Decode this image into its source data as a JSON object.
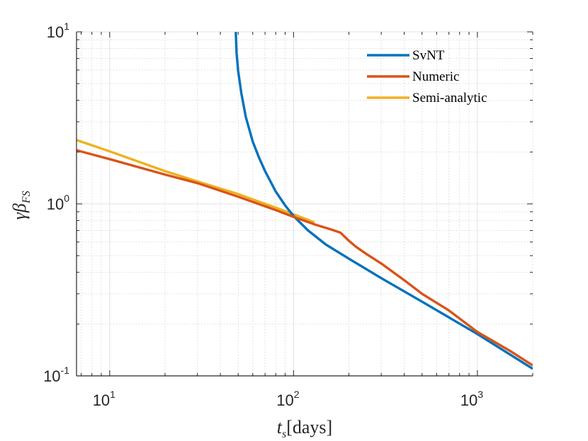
{
  "chart_data": {
    "type": "line",
    "xscale": "log",
    "yscale": "log",
    "xlim": [
      6.6,
      2000
    ],
    "ylim": [
      0.1,
      10
    ],
    "grid": true,
    "minor_grid": true,
    "legend_location": "top-right",
    "xlabel": {
      "main": "t",
      "sub": "s",
      "rest": "[days]"
    },
    "ylabel": {
      "main": "γβ",
      "sub": "FS"
    },
    "x_ticks": [
      {
        "value": 10,
        "base": "10",
        "exp": "1"
      },
      {
        "value": 100,
        "base": "10",
        "exp": "2"
      },
      {
        "value": 1000,
        "base": "10",
        "exp": "3"
      }
    ],
    "y_ticks": [
      {
        "value": 0.1,
        "base": "10",
        "exp": "-1"
      },
      {
        "value": 1,
        "base": "10",
        "exp": "0"
      },
      {
        "value": 10,
        "base": "10",
        "exp": "1"
      }
    ],
    "series": [
      {
        "name": "SvNT",
        "color": "#0072BD",
        "points": [
          [
            48.5,
            10
          ],
          [
            49,
            7.5
          ],
          [
            50,
            5.9
          ],
          [
            52,
            4.4
          ],
          [
            55,
            3.2
          ],
          [
            60,
            2.3
          ],
          [
            65,
            1.85
          ],
          [
            70,
            1.55
          ],
          [
            80,
            1.18
          ],
          [
            90,
            0.98
          ],
          [
            100,
            0.85
          ],
          [
            120,
            0.7
          ],
          [
            150,
            0.58
          ],
          [
            200,
            0.48
          ],
          [
            300,
            0.37
          ],
          [
            500,
            0.27
          ],
          [
            1000,
            0.175
          ],
          [
            2000,
            0.11
          ]
        ]
      },
      {
        "name": "Numeric",
        "color": "#D95319",
        "points": [
          [
            6.6,
            2.05
          ],
          [
            10,
            1.82
          ],
          [
            20,
            1.48
          ],
          [
            30,
            1.32
          ],
          [
            50,
            1.1
          ],
          [
            80,
            0.92
          ],
          [
            100,
            0.84
          ],
          [
            130,
            0.76
          ],
          [
            160,
            0.71
          ],
          [
            180,
            0.68
          ],
          [
            200,
            0.61
          ],
          [
            220,
            0.56
          ],
          [
            250,
            0.51
          ],
          [
            300,
            0.45
          ],
          [
            400,
            0.36
          ],
          [
            500,
            0.3
          ],
          [
            700,
            0.24
          ],
          [
            1000,
            0.18
          ],
          [
            1500,
            0.14
          ],
          [
            2000,
            0.115
          ]
        ]
      },
      {
        "name": "Semi-analytic",
        "color": "#EDB120",
        "points": [
          [
            6.6,
            2.35
          ],
          [
            10,
            2.02
          ],
          [
            20,
            1.55
          ],
          [
            30,
            1.35
          ],
          [
            50,
            1.14
          ],
          [
            80,
            0.95
          ],
          [
            100,
            0.87
          ],
          [
            130,
            0.78
          ]
        ]
      }
    ]
  }
}
